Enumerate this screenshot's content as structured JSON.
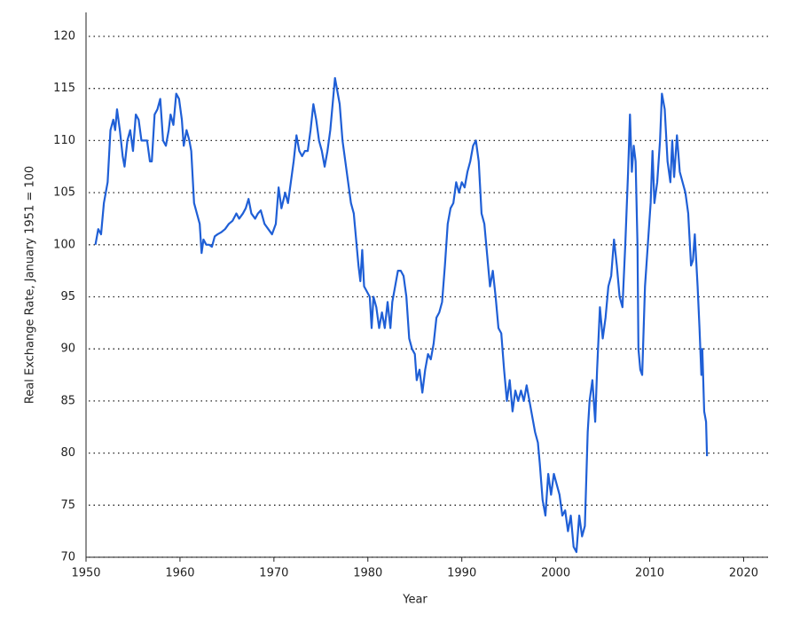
{
  "chart_data": {
    "type": "line",
    "x_label": "Year",
    "y_label": "Real Exchange Rate, January 1951 = 100",
    "color": "#1f5fd6",
    "grid": true,
    "xlim": [
      1950,
      2022.6
    ],
    "ylim": [
      70,
      122.3
    ],
    "xticks": [
      1950,
      1960,
      1970,
      1980,
      1990,
      2000,
      2010,
      2020
    ],
    "yticks": [
      70,
      75,
      80,
      85,
      90,
      95,
      100,
      105,
      110,
      115,
      120
    ],
    "x": [
      1951.0,
      1951.3,
      1951.6,
      1951.9,
      1952.3,
      1952.6,
      1952.9,
      1953.1,
      1953.3,
      1953.6,
      1953.9,
      1954.1,
      1954.4,
      1954.7,
      1955.0,
      1955.3,
      1955.6,
      1955.9,
      1956.2,
      1956.5,
      1956.8,
      1957.0,
      1957.3,
      1957.6,
      1957.9,
      1958.2,
      1958.5,
      1958.8,
      1959.0,
      1959.3,
      1959.6,
      1959.9,
      1960.2,
      1960.4,
      1960.7,
      1961.0,
      1961.2,
      1961.5,
      1961.8,
      1962.1,
      1962.3,
      1962.5,
      1962.8,
      1963.1,
      1963.4,
      1963.7,
      1964.0,
      1964.4,
      1964.8,
      1965.2,
      1965.6,
      1966.0,
      1966.3,
      1966.7,
      1967.0,
      1967.3,
      1967.6,
      1968.0,
      1968.3,
      1968.6,
      1969.0,
      1969.4,
      1969.8,
      1970.2,
      1970.5,
      1970.8,
      1971.2,
      1971.5,
      1971.8,
      1972.1,
      1972.4,
      1972.7,
      1973.0,
      1973.3,
      1973.6,
      1973.9,
      1974.2,
      1974.5,
      1974.8,
      1975.1,
      1975.4,
      1975.7,
      1976.0,
      1976.3,
      1976.5,
      1976.7,
      1977.0,
      1977.3,
      1977.6,
      1977.9,
      1978.2,
      1978.5,
      1978.7,
      1979.0,
      1979.2,
      1979.4,
      1979.6,
      1979.9,
      1980.2,
      1980.4,
      1980.6,
      1980.9,
      1981.2,
      1981.5,
      1981.8,
      1982.1,
      1982.4,
      1982.6,
      1982.9,
      1983.2,
      1983.5,
      1983.8,
      1984.1,
      1984.4,
      1984.7,
      1985.0,
      1985.2,
      1985.5,
      1985.8,
      1986.1,
      1986.4,
      1986.7,
      1987.0,
      1987.3,
      1987.6,
      1987.9,
      1988.2,
      1988.5,
      1988.8,
      1989.1,
      1989.4,
      1989.7,
      1990.0,
      1990.3,
      1990.6,
      1990.9,
      1991.2,
      1991.5,
      1991.8,
      1992.1,
      1992.4,
      1992.7,
      1993.0,
      1993.3,
      1993.6,
      1993.9,
      1994.2,
      1994.5,
      1994.8,
      1995.1,
      1995.4,
      1995.7,
      1996.0,
      1996.3,
      1996.6,
      1996.9,
      1997.2,
      1997.5,
      1997.8,
      1998.1,
      1998.3,
      1998.6,
      1998.9,
      1999.2,
      1999.5,
      1999.8,
      2000.1,
      2000.4,
      2000.7,
      2001.0,
      2001.3,
      2001.6,
      2001.9,
      2002.2,
      2002.5,
      2002.8,
      2003.1,
      2003.4,
      2003.6,
      2003.9,
      2004.2,
      2004.4,
      2004.7,
      2005.0,
      2005.3,
      2005.6,
      2005.9,
      2006.2,
      2006.5,
      2006.8,
      2007.1,
      2007.4,
      2007.7,
      2007.9,
      2008.1,
      2008.3,
      2008.5,
      2008.7,
      2008.8,
      2009.0,
      2009.2,
      2009.5,
      2009.8,
      2010.1,
      2010.3,
      2010.5,
      2010.8,
      2011.1,
      2011.3,
      2011.6,
      2011.9,
      2012.2,
      2012.4,
      2012.6,
      2012.9,
      2013.2,
      2013.5,
      2013.8,
      2014.1,
      2014.4,
      2014.6,
      2014.8,
      2015.1,
      2015.3,
      2015.5,
      2015.6,
      2015.8,
      2016.0,
      2016.1
    ],
    "values": [
      100,
      101.5,
      101,
      104,
      106,
      111,
      112,
      111,
      113,
      111,
      108.5,
      107.5,
      110,
      111,
      109,
      112.5,
      112,
      110,
      110,
      110,
      108,
      108,
      112.5,
      113,
      114,
      110,
      109.5,
      111,
      112.5,
      111.5,
      114.5,
      114,
      112,
      109.5,
      111,
      110,
      109,
      104,
      103,
      102,
      99.2,
      100.5,
      100,
      100,
      99.8,
      100.8,
      101,
      101.2,
      101.5,
      102,
      102.3,
      103,
      102.5,
      103,
      103.5,
      104.4,
      103,
      102.5,
      103,
      103.3,
      102,
      101.5,
      101,
      102,
      105.5,
      103.5,
      105,
      104,
      106,
      108,
      110.5,
      109,
      108.5,
      109,
      109,
      111,
      113.5,
      112,
      110,
      109,
      107.5,
      109,
      111,
      114,
      116,
      115,
      113.5,
      110,
      108,
      106,
      104,
      103,
      101,
      98,
      96.5,
      99.5,
      96,
      95.5,
      95,
      92,
      95,
      94,
      92,
      93.5,
      92,
      94.5,
      92,
      94.5,
      96,
      97.5,
      97.5,
      97,
      95,
      91,
      90,
      89.5,
      87,
      88,
      85.8,
      88,
      89.5,
      89,
      90.5,
      93,
      93.5,
      94.5,
      98,
      102,
      103.5,
      104,
      106,
      105,
      106,
      105.5,
      107,
      108,
      109.5,
      110,
      108,
      103,
      102,
      99,
      96,
      97.5,
      95,
      92,
      91.5,
      88,
      85,
      87,
      84,
      86,
      85,
      86,
      85,
      86.5,
      85,
      83.5,
      82,
      81,
      79,
      75.5,
      74,
      78,
      76,
      78,
      77,
      76,
      74,
      74.5,
      72.5,
      74,
      71,
      70.5,
      74,
      72,
      73,
      82,
      85,
      87,
      83,
      88,
      94,
      91,
      93,
      96,
      97,
      100.5,
      98,
      95,
      94,
      100,
      107,
      112.5,
      107,
      109.5,
      108,
      100,
      90,
      88,
      87.5,
      96,
      100,
      104,
      109,
      104,
      106,
      110,
      114.5,
      113,
      108,
      106,
      110,
      106.5,
      110.5,
      107,
      106,
      105,
      103,
      98,
      98.5,
      101,
      96,
      92,
      87.5,
      90,
      84,
      83,
      79.7
    ]
  }
}
